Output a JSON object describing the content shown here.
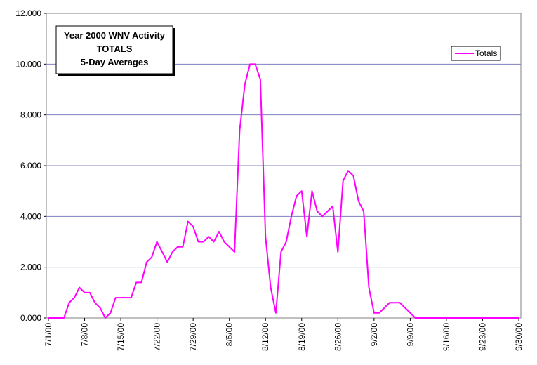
{
  "chart_data": {
    "type": "line",
    "title_lines": [
      "Year 2000 WNV Activity",
      "TOTALS",
      "5-Day Averages"
    ],
    "xlabel": "",
    "ylabel": "",
    "ylim": [
      0,
      12
    ],
    "grid": true,
    "legend_position": "top-right",
    "y_ticks": [
      "0.000",
      "2.000",
      "4.000",
      "6.000",
      "8.000",
      "10.000",
      "12.000"
    ],
    "x_tick_labels": [
      "7/1/00",
      "7/8/00",
      "7/15/00",
      "7/22/00",
      "7/29/00",
      "8/5/00",
      "8/12/00",
      "8/19/00",
      "8/26/00",
      "9/2/00",
      "9/9/00",
      "9/16/00",
      "9/23/00",
      "9/30/00"
    ],
    "x_start_date": "7/1/00",
    "colors": {
      "series": "#ff00ff",
      "grid": "#8080c0",
      "axis": "#808080"
    },
    "series": [
      {
        "name": "Totals",
        "x": [
          "7/1/00",
          "7/2/00",
          "7/3/00",
          "7/4/00",
          "7/5/00",
          "7/6/00",
          "7/7/00",
          "7/8/00",
          "7/9/00",
          "7/10/00",
          "7/11/00",
          "7/12/00",
          "7/13/00",
          "7/14/00",
          "7/15/00",
          "7/16/00",
          "7/17/00",
          "7/18/00",
          "7/19/00",
          "7/20/00",
          "7/21/00",
          "7/22/00",
          "7/23/00",
          "7/24/00",
          "7/25/00",
          "7/26/00",
          "7/27/00",
          "7/28/00",
          "7/29/00",
          "7/30/00",
          "7/31/00",
          "8/1/00",
          "8/2/00",
          "8/3/00",
          "8/4/00",
          "8/5/00",
          "8/6/00",
          "8/7/00",
          "8/8/00",
          "8/9/00",
          "8/10/00",
          "8/11/00",
          "8/12/00",
          "8/13/00",
          "8/14/00",
          "8/15/00",
          "8/16/00",
          "8/17/00",
          "8/18/00",
          "8/19/00",
          "8/20/00",
          "8/21/00",
          "8/22/00",
          "8/23/00",
          "8/24/00",
          "8/25/00",
          "8/26/00",
          "8/27/00",
          "8/28/00",
          "8/29/00",
          "8/30/00",
          "8/31/00",
          "9/1/00",
          "9/2/00",
          "9/3/00",
          "9/4/00",
          "9/5/00",
          "9/6/00",
          "9/7/00",
          "9/8/00",
          "9/9/00",
          "9/10/00",
          "9/11/00",
          "9/12/00",
          "9/13/00",
          "9/14/00",
          "9/15/00",
          "9/16/00",
          "9/17/00",
          "9/18/00",
          "9/19/00",
          "9/20/00",
          "9/21/00",
          "9/22/00",
          "9/23/00",
          "9/24/00",
          "9/25/00",
          "9/26/00",
          "9/27/00",
          "9/28/00",
          "9/29/00",
          "9/30/00"
        ],
        "values": [
          0,
          0,
          0,
          0,
          0.6,
          0.8,
          1.2,
          1.0,
          1.0,
          0.6,
          0.4,
          0,
          0.2,
          0.8,
          0.8,
          0.8,
          0.8,
          1.4,
          1.4,
          2.2,
          2.4,
          3.0,
          2.6,
          2.2,
          2.6,
          2.8,
          2.8,
          3.8,
          3.6,
          3.0,
          3.0,
          3.2,
          3.0,
          3.4,
          3.0,
          2.8,
          2.6,
          7.4,
          9.2,
          10.0,
          10.0,
          9.4,
          3.2,
          1.2,
          0.2,
          2.6,
          3.0,
          4.0,
          4.8,
          5.0,
          3.2,
          5.0,
          4.2,
          4.0,
          4.2,
          4.4,
          2.6,
          5.4,
          5.8,
          5.6,
          4.6,
          4.2,
          1.2,
          0.2,
          0.2,
          0.4,
          0.6,
          0.6,
          0.6,
          0.4,
          0.2,
          0,
          0,
          0,
          0,
          0,
          0,
          0,
          0,
          0,
          0,
          0,
          0,
          0,
          0,
          0,
          0,
          0,
          0,
          0,
          0,
          0
        ]
      }
    ]
  }
}
